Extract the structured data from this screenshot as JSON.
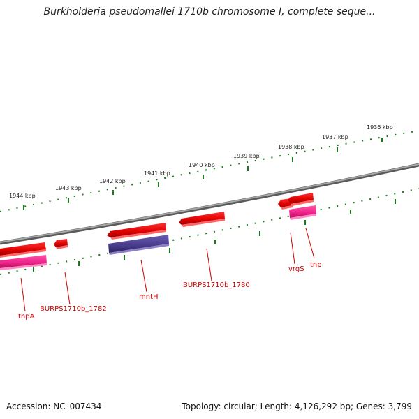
{
  "title": "Burkholderia pseudomallei 1710b chromosome I, complete seque...",
  "footer": {
    "accession": "Accession: NC_007434",
    "summary": "Topology: circular; Length: 4,126,292 bp; Genes: 3,799"
  },
  "colors": {
    "backbone": "#808080",
    "ticks": "#1a7a1a",
    "gene_forward": "#e00000",
    "gene_reverse": "#ee2288",
    "gene_other": "#4a3d8f",
    "label": "#cc0000"
  },
  "kbp_labels": [
    "1944 kbp",
    "1943 kbp",
    "1942 kbp",
    "1941 kbp",
    "1940 kbp",
    "1939 kbp",
    "1938 kbp",
    "1937 kbp",
    "1936 kbp"
  ],
  "gene_labels": [
    "tnpA",
    "BURPS1710b_1782",
    "mntH",
    "BURPS1710b_1780",
    "vrgS",
    "tnp"
  ]
}
